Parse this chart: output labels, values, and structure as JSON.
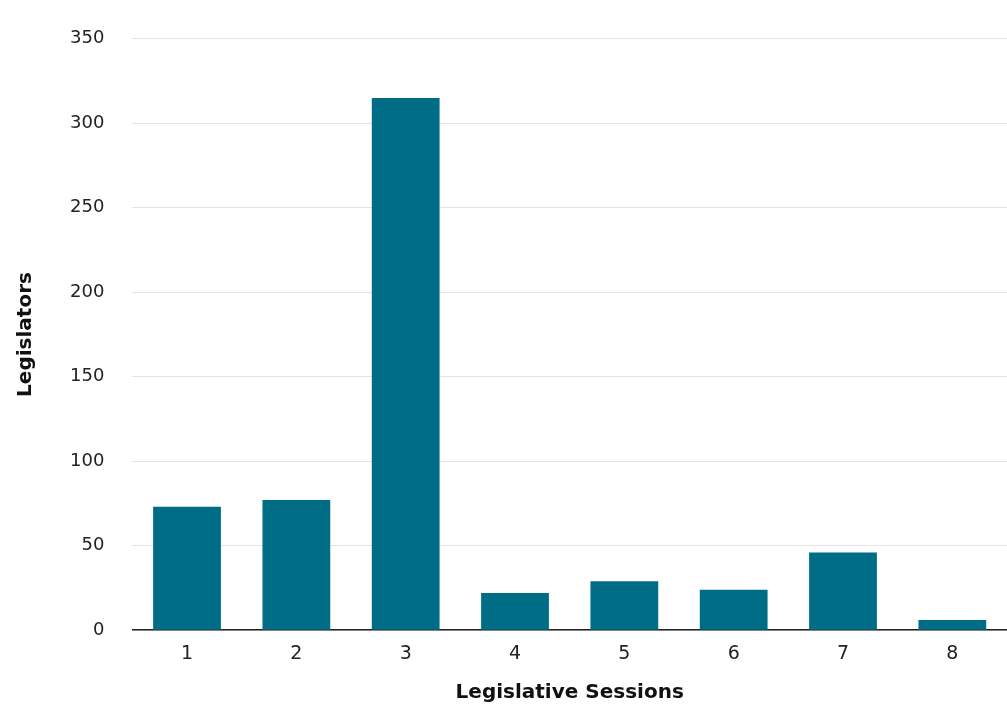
{
  "chart_data": {
    "type": "bar",
    "xlabel": "Legislative Sessions",
    "ylabel": "Legislators",
    "categories": [
      "1",
      "2",
      "3",
      "4",
      "5",
      "6",
      "7",
      "8"
    ],
    "values": [
      73,
      77,
      315,
      22,
      29,
      24,
      46,
      6
    ],
    "color": "#006d86",
    "ylim": [
      0,
      350
    ],
    "yticks": [
      0,
      50,
      100,
      150,
      200,
      250,
      300,
      350
    ],
    "grid": "y"
  }
}
